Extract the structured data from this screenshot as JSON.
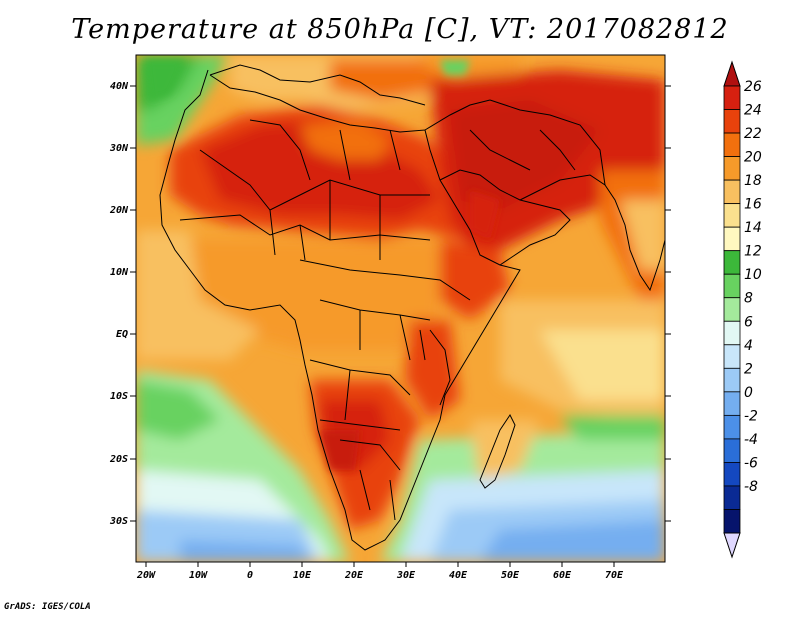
{
  "title": "Temperature at 850hPa [C], VT: 2017082812",
  "credit": "GrADS: IGES/COLA",
  "lat_labels": [
    "40N",
    "30N",
    "20N",
    "10N",
    "EQ",
    "10S",
    "20S",
    "30S"
  ],
  "lon_labels": [
    "20W",
    "10W",
    "0",
    "10E",
    "20E",
    "30E",
    "40E",
    "50E",
    "60E",
    "70E"
  ],
  "colorbar": {
    "labels": [
      "26",
      "24",
      "22",
      "20",
      "18",
      "16",
      "14",
      "12",
      "10",
      "8",
      "6",
      "4",
      "2",
      "0",
      "-2",
      "-4",
      "-6",
      "-8"
    ],
    "colors": [
      "#d62010",
      "#e8420c",
      "#f2700e",
      "#f69a2a",
      "#f8c060",
      "#fae08e",
      "#fff8c0",
      "#3cb83a",
      "#68d260",
      "#a4ea9c",
      "#e2f8f4",
      "#c8e6fa",
      "#9ccaf6",
      "#74aef0",
      "#4c90e8",
      "#2a6ed8",
      "#1448c0",
      "#0a2a94",
      "#06146c"
    ],
    "min_color": "#06146c",
    "max_color": "#b01010"
  },
  "map_regions": {
    "ocean_south": "#7ab4ee",
    "ocean_deep_south": "#58a0ea",
    "hot": "#d62010",
    "very_hot": "#e03a10",
    "warm": "#f69a2a",
    "mild": "#f8c060",
    "cool": "#a4ea9c",
    "green": "#68d260"
  }
}
